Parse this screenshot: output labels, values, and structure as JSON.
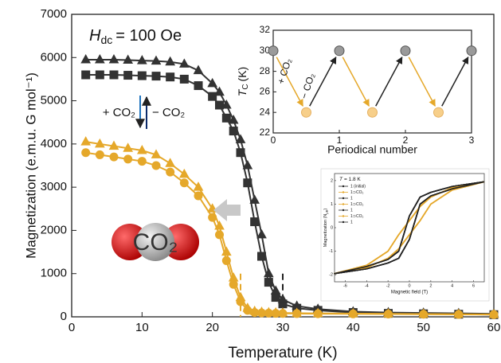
{
  "chart_data": [
    {
      "type": "line",
      "x_label": "Temperature (K)",
      "y_label": "Magnetization (e.m.u. G mol⁻¹)",
      "annotation": {
        "symbol": "H",
        "subscript": "dc",
        "text": "= 100 Oe"
      },
      "co2_add": "+ CO₂",
      "co2_remove": "− CO₂",
      "molecule_label": "CO₂",
      "x": [
        2,
        4,
        6,
        8,
        10,
        12,
        14,
        16,
        18,
        20,
        21,
        22,
        23,
        24,
        25,
        26,
        27,
        28,
        29,
        30,
        32,
        35,
        40,
        45,
        50,
        55,
        60
      ],
      "xlim": [
        0,
        60
      ],
      "xticks": [
        0,
        10,
        20,
        30,
        40,
        50,
        60
      ],
      "ylim": [
        0,
        7000
      ],
      "yticks": [
        0,
        1000,
        2000,
        3000,
        4000,
        5000,
        6000,
        7000
      ],
      "series": [
        {
          "color": "#333333",
          "marker": "square",
          "values": [
            5600,
            5600,
            5600,
            5590,
            5580,
            5570,
            5550,
            5500,
            5350,
            5100,
            4900,
            4600,
            4300,
            3800,
            3100,
            2200,
            1400,
            800,
            450,
            300,
            200,
            150,
            100,
            80,
            70,
            60,
            50
          ]
        },
        {
          "color": "#333333",
          "marker": "triangle",
          "values": [
            5950,
            5950,
            5950,
            5940,
            5930,
            5920,
            5900,
            5850,
            5700,
            5400,
            5200,
            4900,
            4550,
            4100,
            3500,
            2700,
            1900,
            1000,
            600,
            400,
            250,
            180,
            120,
            100,
            90,
            80,
            70
          ]
        },
        {
          "color": "#e5a82a",
          "marker": "triangle",
          "values": [
            4050,
            4000,
            3950,
            3900,
            3850,
            3750,
            3550,
            3300,
            3000,
            2500,
            2100,
            1500,
            900,
            450,
            200,
            130,
            110,
            100,
            95,
            90,
            85,
            80,
            75,
            70,
            65,
            60,
            55
          ]
        },
        {
          "color": "#e5a82a",
          "marker": "circle",
          "values": [
            3800,
            3750,
            3700,
            3650,
            3600,
            3500,
            3350,
            3100,
            2800,
            2300,
            1900,
            1300,
            750,
            350,
            150,
            100,
            90,
            85,
            80,
            78,
            75,
            72,
            68,
            64,
            60,
            56,
            52
          ]
        }
      ],
      "vlines": [
        {
          "x": 24,
          "color": "#e5a82a"
        },
        {
          "x": 30,
          "color": "#222222"
        }
      ]
    },
    {
      "type": "scatter",
      "x_label": "Periodical number",
      "y_label": {
        "symbol": "T",
        "subscript": "C",
        "text": "(K)"
      },
      "co2_add": "+ CO₂",
      "co2_remove": "− CO₂",
      "xlim": [
        0,
        3
      ],
      "xticks": [
        0,
        1,
        2,
        3
      ],
      "ylim": [
        22,
        32
      ],
      "yticks": [
        22,
        24,
        26,
        28,
        30,
        32
      ],
      "series": [
        {
          "color": "#9a9a9a",
          "x": [
            0,
            1,
            2,
            3
          ],
          "values": [
            30,
            30,
            30,
            30
          ]
        },
        {
          "color": "#f7cf8a",
          "x": [
            0.5,
            1.5,
            2.5
          ],
          "values": [
            24,
            24,
            24
          ]
        }
      ]
    },
    {
      "type": "line",
      "annotation": {
        "symbol": "T",
        "text": "= 1.8 K"
      },
      "x_label": "Magnetic field (T)",
      "y_label": {
        "text": "Magnetization (N",
        "subscript": "μB",
        "tail": ")"
      },
      "xlim": [
        -7,
        7
      ],
      "xticks": [
        -6,
        -4,
        -2,
        0,
        2,
        4,
        6
      ],
      "ylim": [
        -2.3,
        2.3
      ],
      "yticks": [
        -2,
        -1,
        0,
        1,
        2
      ],
      "x": [
        7,
        4,
        2,
        1,
        0,
        -1,
        -2,
        -4,
        -7,
        -4,
        -2,
        -1,
        0,
        1,
        2,
        4,
        7
      ],
      "series": [
        {
          "name": "1 (initial)",
          "color": "#222222",
          "values": [
            1.95,
            1.75,
            1.5,
            1.3,
            0.5,
            -1.0,
            -1.35,
            -1.65,
            -1.95,
            -1.75,
            -1.5,
            -1.3,
            -0.5,
            1.0,
            1.35,
            1.65,
            1.95
          ]
        },
        {
          "name": "1⊃CO₂",
          "color": "#e5a82a",
          "values": [
            1.95,
            1.7,
            1.3,
            0.9,
            0.3,
            -0.3,
            -1.0,
            -1.6,
            -1.95,
            -1.7,
            -1.3,
            -0.9,
            -0.3,
            0.3,
            1.0,
            1.6,
            1.95
          ]
        },
        {
          "name": "1",
          "color": "#222222",
          "values": [
            1.95,
            1.75,
            1.5,
            1.3,
            0.5,
            -1.0,
            -1.35,
            -1.65,
            -1.95,
            -1.75,
            -1.5,
            -1.3,
            -0.5,
            1.0,
            1.35,
            1.65,
            1.95
          ]
        },
        {
          "name": "1⊃CO₂",
          "color": "#e5a82a",
          "values": [
            1.95,
            1.7,
            1.3,
            0.9,
            0.3,
            -0.3,
            -1.0,
            -1.6,
            -1.95,
            -1.7,
            -1.3,
            -0.9,
            -0.3,
            0.3,
            1.0,
            1.6,
            1.95
          ]
        },
        {
          "name": "1",
          "color": "#222222",
          "values": [
            1.95,
            1.75,
            1.5,
            1.3,
            0.5,
            -1.0,
            -1.35,
            -1.65,
            -1.95,
            -1.75,
            -1.5,
            -1.3,
            -0.5,
            1.0,
            1.35,
            1.65,
            1.95
          ]
        },
        {
          "name": "1⊃CO₂",
          "color": "#e5a82a",
          "values": [
            1.95,
            1.7,
            1.3,
            0.9,
            0.3,
            -0.3,
            -1.0,
            -1.6,
            -1.95,
            -1.7,
            -1.3,
            -0.9,
            -0.3,
            0.3,
            1.0,
            1.6,
            1.95
          ]
        },
        {
          "name": "1",
          "color": "#222222",
          "values": [
            1.95,
            1.75,
            1.5,
            1.3,
            0.5,
            -1.0,
            -1.35,
            -1.65,
            -1.95,
            -1.75,
            -1.5,
            -1.3,
            -0.5,
            1.0,
            1.35,
            1.65,
            1.95
          ]
        }
      ]
    }
  ]
}
